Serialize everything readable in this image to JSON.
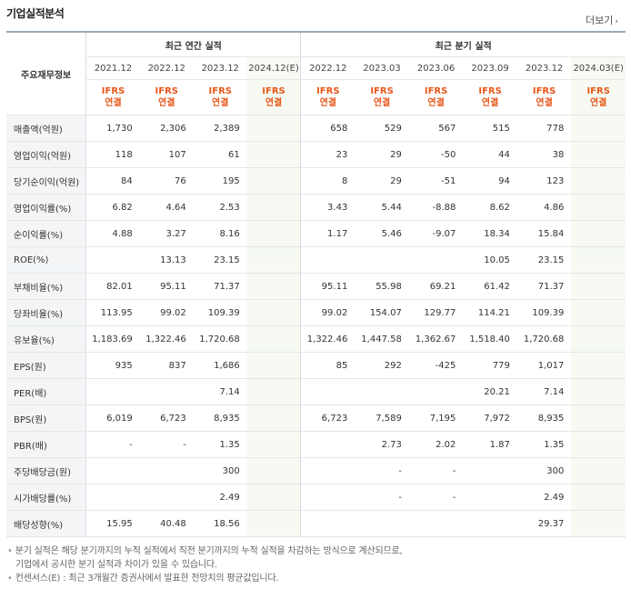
{
  "title": "기업실적분석",
  "more_label": "더보기",
  "table": {
    "row_header_label": "주요재무정보",
    "group_annual": "최근 연간 실적",
    "group_quarter": "최근 분기 실적",
    "periods": [
      "2021.12",
      "2022.12",
      "2023.12",
      "2024.12(E)",
      "2022.12",
      "2023.03",
      "2023.06",
      "2023.09",
      "2023.12",
      "2024.03(E)"
    ],
    "ifrs_top": "IFRS",
    "ifrs_bottom": "연결",
    "rows": [
      {
        "label": "매출액(억원)",
        "values": [
          "1,730",
          "2,306",
          "2,389",
          "",
          "658",
          "529",
          "567",
          "515",
          "778",
          ""
        ]
      },
      {
        "label": "영업이익(억원)",
        "values": [
          "118",
          "107",
          "61",
          "",
          "23",
          "29",
          "-50",
          "44",
          "38",
          ""
        ]
      },
      {
        "label": "당기순이익(억원)",
        "values": [
          "84",
          "76",
          "195",
          "",
          "8",
          "29",
          "-51",
          "94",
          "123",
          ""
        ]
      },
      {
        "label": "영업이익률(%)",
        "values": [
          "6.82",
          "4.64",
          "2.53",
          "",
          "3.43",
          "5.44",
          "-8.88",
          "8.62",
          "4.86",
          ""
        ]
      },
      {
        "label": "순이익률(%)",
        "values": [
          "4.88",
          "3.27",
          "8.16",
          "",
          "1.17",
          "5.46",
          "-9.07",
          "18.34",
          "15.84",
          ""
        ]
      },
      {
        "label": "ROE(%)",
        "values": [
          "",
          "13.13",
          "23.15",
          "",
          "",
          "",
          "",
          "10.05",
          "23.15",
          ""
        ]
      },
      {
        "label": "부채비율(%)",
        "values": [
          "82.01",
          "95.11",
          "71.37",
          "",
          "95.11",
          "55.98",
          "69.21",
          "61.42",
          "71.37",
          ""
        ]
      },
      {
        "label": "당좌비율(%)",
        "values": [
          "113.95",
          "99.02",
          "109.39",
          "",
          "99.02",
          "154.07",
          "129.77",
          "114.21",
          "109.39",
          ""
        ]
      },
      {
        "label": "유보율(%)",
        "values": [
          "1,183.69",
          "1,322.46",
          "1,720.68",
          "",
          "1,322.46",
          "1,447.58",
          "1,362.67",
          "1,518.40",
          "1,720.68",
          ""
        ]
      },
      {
        "label": "EPS(원)",
        "values": [
          "935",
          "837",
          "1,686",
          "",
          "85",
          "292",
          "-425",
          "779",
          "1,017",
          ""
        ]
      },
      {
        "label": "PER(배)",
        "values": [
          "",
          "",
          "7.14",
          "",
          "",
          "",
          "",
          "20.21",
          "7.14",
          ""
        ]
      },
      {
        "label": "BPS(원)",
        "values": [
          "6,019",
          "6,723",
          "8,935",
          "",
          "6,723",
          "7,589",
          "7,195",
          "7,972",
          "8,935",
          ""
        ]
      },
      {
        "label": "PBR(배)",
        "values": [
          "-",
          "-",
          "1.35",
          "",
          "",
          "2.73",
          "2.02",
          "1.87",
          "1.35",
          ""
        ]
      },
      {
        "label": "주당배당금(원)",
        "values": [
          "",
          "",
          "300",
          "",
          "",
          "-",
          "-",
          "",
          "300",
          ""
        ]
      },
      {
        "label": "시가배당률(%)",
        "values": [
          "",
          "",
          "2.49",
          "",
          "",
          "-",
          "-",
          "",
          "2.49",
          ""
        ]
      },
      {
        "label": "배당성향(%)",
        "values": [
          "15.95",
          "40.48",
          "18.56",
          "",
          "",
          "",
          "",
          "",
          "29.37",
          ""
        ]
      }
    ]
  },
  "notes": {
    "line1": "분기 실적은 해당 분기까지의 누적 실적에서 직전 분기까지의 누적 실적을 차감하는 방식으로 계산되므로,",
    "line2": "기업에서 공시한 분기 실적과 차이가 있을 수 있습니다.",
    "line3": "컨센서스(E) : 최근 3개월간 증권사에서 발표한 전망치의 평균값입니다."
  },
  "colors": {
    "accent": "#e8571b",
    "negative": "#e8340c",
    "estimate_bg": "#f6faf2",
    "label_bg": "#f3f5f7"
  }
}
